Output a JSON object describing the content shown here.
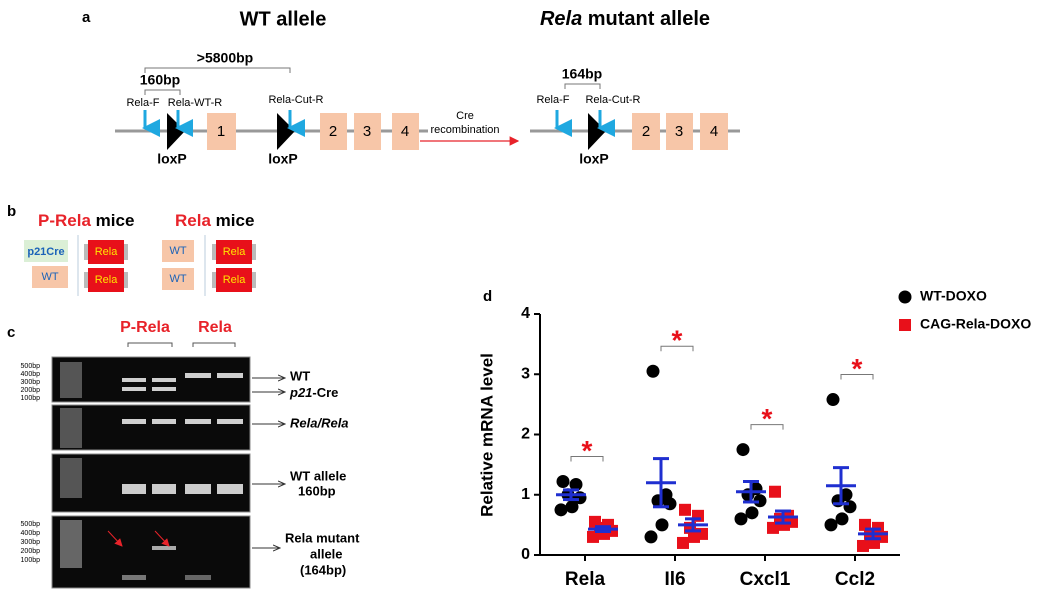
{
  "panel_a": {
    "label": "a",
    "wt_title": "WT allele",
    "mutant_title": {
      "gene": "Rela",
      "rest": "mutant allele"
    },
    "spans": {
      "long": ">5800bp",
      "wt": "160bp",
      "mutant": "164bp"
    },
    "primers": {
      "forward": "Rela-F",
      "wt_reverse": "Rela-WT-R",
      "cut_reverse": "Rela-Cut-R"
    },
    "loxp": "loxP",
    "recombination": [
      "Cre",
      "recombination"
    ],
    "wt_exons": [
      "1",
      "2",
      "3",
      "4"
    ],
    "mutant_exons": [
      "2",
      "3",
      "4"
    ]
  },
  "panel_b": {
    "label": "b",
    "groups": [
      {
        "name": "P-Rela",
        "suffix": "mice"
      },
      {
        "name": "Rela",
        "suffix": "mice"
      }
    ],
    "boxes": {
      "cre": "p21Cre",
      "wt": "WT",
      "rela": "Rela"
    }
  },
  "panel_c": {
    "label": "c",
    "ladder": [
      "500bp",
      "400bp",
      "300bp",
      "200bp",
      "100bp"
    ],
    "lanes": [
      "P-Rela",
      "Rela"
    ],
    "wt": "WT",
    "cre": {
      "italic": "p21",
      "rest": "-Cre"
    },
    "rela_rela": "Rela/Rela",
    "wt_allele": [
      "WT allele",
      "160bp"
    ],
    "mutant_allele": [
      "Rela mutant",
      "allele",
      "(164bp)"
    ]
  },
  "chart_data": {
    "type": "dot",
    "label": "d",
    "y_label": "Relative mRNA level",
    "categories": [
      "Rela",
      "Il6",
      "Cxcl1",
      "Ccl2"
    ],
    "ylim": [
      0,
      4
    ],
    "yticks": [
      0,
      1,
      2,
      3,
      4
    ],
    "legend": "top-right-outside",
    "mean_color": "#1f2fd0",
    "series": [
      {
        "name": "WT-DOXO",
        "color": "#000000",
        "marker": "circle",
        "points": [
          [
            1.22,
            1.17,
            1.0,
            0.95,
            0.8,
            0.75
          ],
          [
            3.05,
            1.0,
            0.9,
            0.85,
            0.5,
            0.3
          ],
          [
            1.75,
            1.1,
            1.0,
            0.9,
            0.7,
            0.6
          ],
          [
            2.58,
            1.0,
            0.9,
            0.8,
            0.6,
            0.5
          ]
        ],
        "mean": [
          1.0,
          1.2,
          1.05,
          1.15
        ],
        "sem": [
          0.08,
          0.4,
          0.17,
          0.3
        ]
      },
      {
        "name": "CAG-Rela-DOXO",
        "color": "#e8101a",
        "marker": "square",
        "points": [
          [
            0.55,
            0.5,
            0.45,
            0.4,
            0.35,
            0.3
          ],
          [
            0.75,
            0.65,
            0.45,
            0.35,
            0.3,
            0.2
          ],
          [
            1.05,
            0.65,
            0.6,
            0.55,
            0.5,
            0.45
          ],
          [
            0.5,
            0.45,
            0.35,
            0.3,
            0.2,
            0.15
          ]
        ],
        "mean": [
          0.43,
          0.5,
          0.63,
          0.35
        ],
        "sem": [
          0.04,
          0.1,
          0.1,
          0.08
        ]
      }
    ],
    "significance": [
      "*",
      "*",
      "*",
      "*"
    ],
    "significance_color": "#e8101a"
  }
}
